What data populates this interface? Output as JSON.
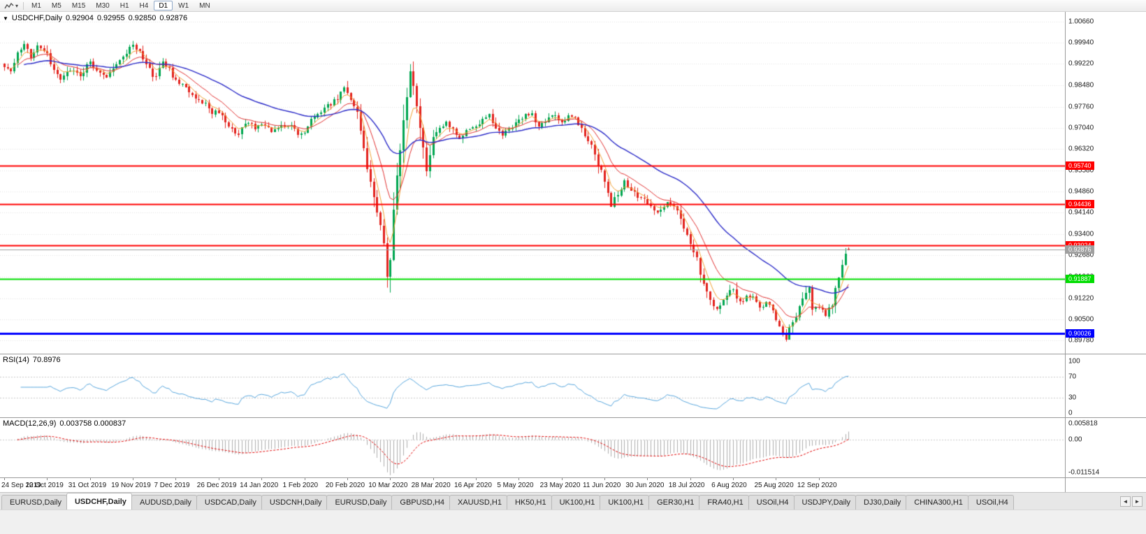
{
  "toolbar": {
    "timeframes": [
      {
        "label": "M1",
        "active": false
      },
      {
        "label": "M5",
        "active": false
      },
      {
        "label": "M15",
        "active": false
      },
      {
        "label": "M30",
        "active": false
      },
      {
        "label": "H1",
        "active": false
      },
      {
        "label": "H4",
        "active": false
      },
      {
        "label": "D1",
        "active": true
      },
      {
        "label": "W1",
        "active": false
      },
      {
        "label": "MN",
        "active": false
      }
    ]
  },
  "chart": {
    "title": {
      "caret": "▼",
      "symbol": "USDCHF,Daily",
      "open": "0.92904",
      "high": "0.92955",
      "low": "0.92850",
      "close": "0.92876"
    },
    "colors": {
      "up": "#00A650",
      "down": "#E3231E",
      "ma_fast": "#E03030",
      "ma_mid": "#F0A030",
      "ma_slow": "#2B2BC8",
      "rsi": "#56A5DC",
      "macd_hist": "#ADADAD",
      "macd_signal": "#E00000",
      "grid": "#E3E3E3",
      "level_dash": "#C9C9C9"
    }
  },
  "rsi": {
    "name": "RSI(14)",
    "value": "70.8976"
  },
  "macd": {
    "name": "MACD(12,26,9)",
    "value": "0.003758 0.000837"
  },
  "tabs": {
    "scroll_left": "◄",
    "scroll_right": "►",
    "items": [
      {
        "label": "EURUSD,Daily",
        "active": false
      },
      {
        "label": "USDCHF,Daily",
        "active": true
      },
      {
        "label": "AUDUSD,Daily",
        "active": false
      },
      {
        "label": "USDCAD,Daily",
        "active": false
      },
      {
        "label": "USDCNH,Daily",
        "active": false
      },
      {
        "label": "EURUSD,Daily",
        "active": false
      },
      {
        "label": "GBPUSD,H4",
        "active": false
      },
      {
        "label": "XAUUSD,H1",
        "active": false
      },
      {
        "label": "HK50,H1",
        "active": false
      },
      {
        "label": "UK100,H1",
        "active": false
      },
      {
        "label": "UK100,H1",
        "active": false
      },
      {
        "label": "GER30,H1",
        "active": false
      },
      {
        "label": "FRA40,H1",
        "active": false
      },
      {
        "label": "USOil,H4",
        "active": false
      },
      {
        "label": "USDJPY,Daily",
        "active": false
      },
      {
        "label": "DJ30,Daily",
        "active": false
      },
      {
        "label": "CHINA300,H1",
        "active": false
      },
      {
        "label": "USOil,H4",
        "active": false
      }
    ]
  },
  "chart_data": {
    "type": "candlestick",
    "symbol": "USDCHF",
    "timeframe": "Daily",
    "current_ohlc": {
      "open": 0.92904,
      "high": 0.92955,
      "low": 0.9285,
      "close": 0.92876
    },
    "y_axis_ticks": [
      1.0066,
      0.9994,
      0.9922,
      0.9848,
      0.9776,
      0.9704,
      0.9632,
      0.9558,
      0.9486,
      0.9414,
      0.934,
      0.9268,
      0.9196,
      0.9122,
      0.905,
      0.8978
    ],
    "x_axis_dates": [
      "24 Sep 2019",
      "12 Oct 2019",
      "31 Oct 2019",
      "19 Nov 2019",
      "7 Dec 2019",
      "26 Dec 2019",
      "14 Jan 2020",
      "1 Feb 2020",
      "20 Feb 2020",
      "10 Mar 2020",
      "28 Mar 2020",
      "16 Apr 2020",
      "5 May 2020",
      "23 May 2020",
      "11 Jun 2020",
      "30 Jun 2020",
      "18 Jul 2020",
      "6 Aug 2020",
      "25 Aug 2020",
      "12 Sep 2020"
    ],
    "x_axis_day_index": [
      0,
      13,
      26,
      39,
      52,
      65,
      78,
      91,
      104,
      117,
      130,
      143,
      156,
      169,
      182,
      195,
      208,
      221,
      234,
      247
    ],
    "horizontal_levels": [
      {
        "price": 0.9574,
        "color": "#FF0000",
        "width": 2,
        "kind": "resistance"
      },
      {
        "price": 0.94436,
        "color": "#FF0000",
        "width": 2,
        "kind": "resistance"
      },
      {
        "price": 0.93024,
        "color": "#FF0000",
        "width": 2,
        "kind": "resistance"
      },
      {
        "price": 0.92876,
        "color": "#A0A0A0",
        "width": 1,
        "kind": "current-price",
        "is_current": true
      },
      {
        "price": 0.91887,
        "color": "#00DD00",
        "width": 2,
        "kind": "support"
      },
      {
        "price": 0.90026,
        "color": "#0000FF",
        "width": 3,
        "kind": "support"
      }
    ],
    "indicators": [
      {
        "name": "RSI",
        "period": 14,
        "current": 70.8976,
        "axis_ticks": [
          100,
          70,
          30,
          0
        ],
        "levels": [
          70,
          30
        ],
        "range": [
          0,
          100
        ]
      },
      {
        "name": "MACD",
        "fast": 12,
        "slow": 26,
        "signal": 9,
        "current_macd": 0.003758,
        "current_signal": 0.000837,
        "axis_max": 0.005818,
        "axis_min": -0.011514,
        "axis_labels": [
          "0.005818",
          "0.00",
          "-0.011514"
        ]
      }
    ],
    "num_candles": 257,
    "noise_seed": 9,
    "price_anchors": [
      [
        0,
        0.9915
      ],
      [
        2,
        0.989
      ],
      [
        4,
        0.995
      ],
      [
        6,
        0.9985
      ],
      [
        8,
        0.9945
      ],
      [
        10,
        0.999
      ],
      [
        13,
        0.9958
      ],
      [
        15,
        0.99
      ],
      [
        17,
        0.9868
      ],
      [
        20,
        0.9905
      ],
      [
        23,
        0.9882
      ],
      [
        26,
        0.9932
      ],
      [
        28,
        0.9902
      ],
      [
        31,
        0.9872
      ],
      [
        34,
        0.993
      ],
      [
        37,
        0.9962
      ],
      [
        39,
        0.9988
      ],
      [
        41,
        0.9958
      ],
      [
        44,
        0.9906
      ],
      [
        46,
        0.9872
      ],
      [
        48,
        0.993
      ],
      [
        50,
        0.99
      ],
      [
        52,
        0.9864
      ],
      [
        55,
        0.984
      ],
      [
        58,
        0.9806
      ],
      [
        61,
        0.9786
      ],
      [
        63,
        0.9756
      ],
      [
        65,
        0.9762
      ],
      [
        68,
        0.9702
      ],
      [
        71,
        0.9686
      ],
      [
        74,
        0.9726
      ],
      [
        76,
        0.9702
      ],
      [
        78,
        0.9716
      ],
      [
        81,
        0.9692
      ],
      [
        84,
        0.9706
      ],
      [
        87,
        0.9716
      ],
      [
        89,
        0.9682
      ],
      [
        91,
        0.9692
      ],
      [
        93,
        0.973
      ],
      [
        96,
        0.976
      ],
      [
        99,
        0.9786
      ],
      [
        101,
        0.9806
      ],
      [
        103,
        0.9846
      ],
      [
        105,
        0.98
      ],
      [
        107,
        0.9746
      ],
      [
        109,
        0.964
      ],
      [
        111,
        0.952
      ],
      [
        113,
        0.942
      ],
      [
        115,
        0.931
      ],
      [
        116,
        0.9192
      ],
      [
        117,
        0.9262
      ],
      [
        118,
        0.942
      ],
      [
        119,
        0.9512
      ],
      [
        120,
        0.963
      ],
      [
        121,
        0.9732
      ],
      [
        122,
        0.983
      ],
      [
        123,
        0.9896
      ],
      [
        124,
        0.9858
      ],
      [
        125,
        0.978
      ],
      [
        126,
        0.9692
      ],
      [
        127,
        0.964
      ],
      [
        128,
        0.9562
      ],
      [
        129,
        0.961
      ],
      [
        130,
        0.966
      ],
      [
        132,
        0.97
      ],
      [
        134,
        0.9726
      ],
      [
        136,
        0.9692
      ],
      [
        138,
        0.9662
      ],
      [
        140,
        0.969
      ],
      [
        143,
        0.9706
      ],
      [
        145,
        0.9736
      ],
      [
        147,
        0.975
      ],
      [
        149,
        0.9706
      ],
      [
        151,
        0.9676
      ],
      [
        153,
        0.97
      ],
      [
        156,
        0.9726
      ],
      [
        158,
        0.9756
      ],
      [
        160,
        0.9746
      ],
      [
        162,
        0.9712
      ],
      [
        164,
        0.973
      ],
      [
        166,
        0.975
      ],
      [
        169,
        0.9716
      ],
      [
        171,
        0.9746
      ],
      [
        173,
        0.9736
      ],
      [
        175,
        0.97
      ],
      [
        177,
        0.966
      ],
      [
        179,
        0.9616
      ],
      [
        181,
        0.955
      ],
      [
        182,
        0.9506
      ],
      [
        184,
        0.9436
      ],
      [
        186,
        0.948
      ],
      [
        188,
        0.9526
      ],
      [
        190,
        0.949
      ],
      [
        192,
        0.9466
      ],
      [
        195,
        0.945
      ],
      [
        197,
        0.9426
      ],
      [
        199,
        0.9416
      ],
      [
        201,
        0.9456
      ],
      [
        203,
        0.944
      ],
      [
        205,
        0.9396
      ],
      [
        207,
        0.9346
      ],
      [
        208,
        0.931
      ],
      [
        210,
        0.925
      ],
      [
        212,
        0.918
      ],
      [
        214,
        0.912
      ],
      [
        216,
        0.9086
      ],
      [
        218,
        0.9112
      ],
      [
        221,
        0.9156
      ],
      [
        223,
        0.9106
      ],
      [
        225,
        0.9126
      ],
      [
        227,
        0.9136
      ],
      [
        229,
        0.9086
      ],
      [
        231,
        0.9112
      ],
      [
        234,
        0.9056
      ],
      [
        236,
        0.9002
      ],
      [
        237,
        0.8986
      ],
      [
        239,
        0.9042
      ],
      [
        241,
        0.9086
      ],
      [
        243,
        0.914
      ],
      [
        244,
        0.9168
      ],
      [
        245,
        0.9086
      ],
      [
        247,
        0.9092
      ],
      [
        249,
        0.9066
      ],
      [
        251,
        0.9106
      ],
      [
        252,
        0.915
      ],
      [
        253,
        0.9196
      ],
      [
        254,
        0.924
      ],
      [
        255,
        0.9268
      ],
      [
        256,
        0.92876
      ]
    ],
    "pinned_candles": {
      "116": {
        "low": 0.9158
      },
      "123": {
        "high": 0.9921
      },
      "237": {
        "low": 0.8974
      },
      "256": {
        "open": 0.92904,
        "high": 0.92955,
        "low": 0.9285,
        "close": 0.92876
      }
    }
  }
}
